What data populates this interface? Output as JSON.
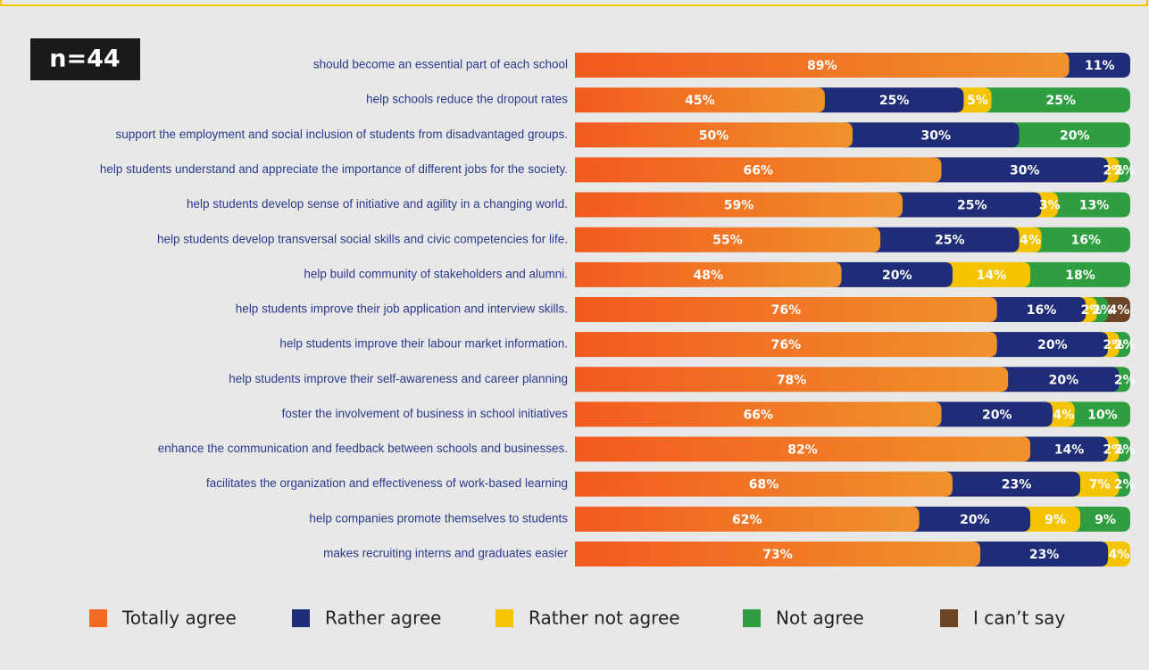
{
  "chart_data": {
    "type": "stacked-bar-horizontal",
    "badge": "n=44",
    "categories": [
      "should become an essential part of each school",
      "help schools reduce the dropout rates",
      "support the employment and social inclusion of students from disadvantaged groups.",
      "help students understand and appreciate the importance of different jobs for the society.",
      "help students develop sense of initiative and agility in a changing world.",
      "help students develop transversal social skills and civic competencies for life.",
      "help build community of stakeholders and alumni.",
      "help students improve their job application and interview skills.",
      "help students improve their labour market information.",
      "help students improve their self-awareness and career planning",
      "foster the involvement of business in school initiatives",
      "enhance the communication and feedback between schools and businesses.",
      "facilitates the organization and effectiveness of work-based learning",
      "help companies promote themselves to students",
      "makes recruiting interns and graduates easier"
    ],
    "xlim": [
      0,
      100
    ],
    "series": [
      {
        "name": "Totally agree",
        "color": "#f26a21",
        "values": [
          89,
          45,
          50,
          66,
          59,
          55,
          48,
          76,
          76,
          78,
          66,
          82,
          68,
          62,
          73
        ],
        "value_labels": [
          "89%",
          "45%",
          "50%",
          "66%",
          "59%",
          "55%",
          "48%",
          "76%",
          "76%",
          "78%",
          "66%",
          "82%",
          "68%",
          "62%",
          "73%"
        ]
      },
      {
        "name": "Rather agree",
        "color": "#1f2d78",
        "values": [
          11,
          25,
          30,
          30,
          25,
          25,
          20,
          16,
          20,
          20,
          20,
          14,
          23,
          20,
          23
        ],
        "value_labels": [
          "11%",
          "25%",
          "30%",
          "30%",
          "25%",
          "25%",
          "20%",
          "16%",
          "20%",
          "20%",
          "20%",
          "14%",
          "23%",
          "20%",
          "23%"
        ]
      },
      {
        "name": "Rather not agree",
        "color": "#f5c400",
        "values": [
          null,
          5,
          null,
          2,
          3,
          4,
          14,
          2,
          2,
          null,
          4,
          2,
          7,
          9,
          4
        ],
        "value_labels": [
          null,
          "5%",
          null,
          "2%",
          "3%",
          "4%",
          "14%",
          "2%",
          "2%",
          null,
          "4%",
          "2%",
          "7%",
          "9%",
          "4%"
        ]
      },
      {
        "name": "Not agree",
        "color": "#2f9e41",
        "values": [
          null,
          25,
          20,
          2,
          13,
          16,
          18,
          2,
          2,
          2,
          10,
          2,
          2,
          9,
          null
        ],
        "value_labels": [
          null,
          "25%",
          "20%",
          "2%",
          "13%",
          "16%",
          "18%",
          "2%",
          "2%",
          "2%",
          "10%",
          "2%",
          "2%",
          "9%",
          null
        ]
      },
      {
        "name": "I can’t say",
        "color": "#6b4526",
        "values": [
          null,
          null,
          null,
          null,
          null,
          null,
          null,
          4,
          null,
          null,
          null,
          null,
          null,
          null,
          null
        ],
        "value_labels": [
          null,
          null,
          null,
          null,
          null,
          null,
          null,
          "4%",
          null,
          null,
          null,
          null,
          null,
          null,
          null
        ]
      }
    ]
  }
}
